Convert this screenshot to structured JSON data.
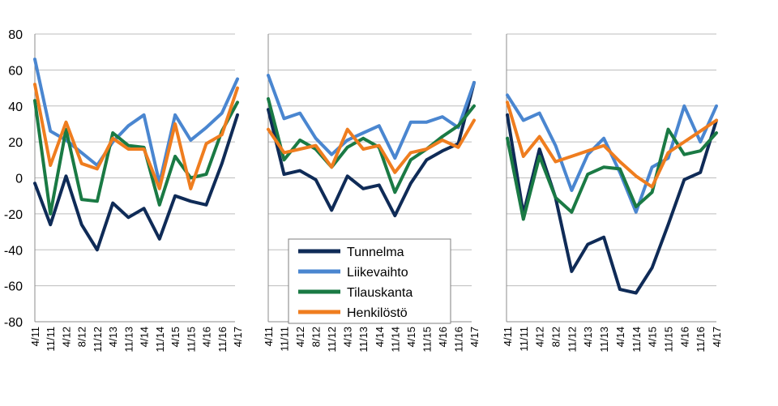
{
  "chart_data": {
    "type": "line",
    "ylim": [
      -80,
      80
    ],
    "yticks": [
      "80",
      "60",
      "40",
      "20",
      "0",
      "-20",
      "-40",
      "-60",
      "-80"
    ],
    "grid": true,
    "legend_placement": "bottom-center of middle panel",
    "colors": {
      "Tunnelma": "#0f2b57",
      "Liikevaihto": "#4a86d0",
      "Tilauskanta": "#1a7a44",
      "Henkilöstö": "#ef7d1f"
    },
    "legend": [
      "Tunnelma",
      "Liikevaihto",
      "Tilauskanta",
      "Henkilöstö"
    ],
    "panels": [
      {
        "x": [
          "4/11",
          "11/11",
          "4/12",
          "8/12",
          "11/12",
          "4/13",
          "11/13",
          "4/14",
          "11/14",
          "4/15",
          "11/15",
          "4/16",
          "11/16",
          "4/17"
        ],
        "series": [
          {
            "name": "Tunnelma",
            "values": [
              -3,
              -26,
              1,
              -26,
              -40,
              -14,
              -22,
              -17,
              -34,
              -10,
              -13,
              -15,
              8,
              35
            ]
          },
          {
            "name": "Liikevaihto",
            "values": [
              66,
              26,
              21,
              14,
              7,
              20,
              29,
              35,
              -3,
              35,
              21,
              28,
              36,
              55
            ]
          },
          {
            "name": "Tilauskanta",
            "values": [
              43,
              -20,
              27,
              -12,
              -13,
              25,
              18,
              17,
              -15,
              12,
              0,
              2,
              26,
              42
            ]
          },
          {
            "name": "Henkilöstö",
            "values": [
              52,
              7,
              31,
              8,
              5,
              22,
              16,
              16,
              -6,
              30,
              -6,
              19,
              24,
              50
            ]
          }
        ]
      },
      {
        "x": [
          "4/11",
          "11/11",
          "4/12",
          "8/12",
          "11/12",
          "4/13",
          "11/13",
          "4/14",
          "11/14",
          "4/15",
          "11/15",
          "4/16",
          "11/16",
          "4/17"
        ],
        "series": [
          {
            "name": "Tunnelma",
            "values": [
              38,
              2,
              4,
              -1,
              -18,
              1,
              -6,
              -4,
              -21,
              -3,
              10,
              15,
              19,
              53
            ]
          },
          {
            "name": "Liikevaihto",
            "values": [
              57,
              33,
              36,
              22,
              13,
              21,
              25,
              29,
              11,
              31,
              31,
              34,
              28,
              53
            ]
          },
          {
            "name": "Tilauskanta",
            "values": [
              44,
              10,
              21,
              16,
              6,
              17,
              22,
              17,
              -8,
              10,
              16,
              23,
              29,
              40
            ]
          },
          {
            "name": "Henkilöstö",
            "values": [
              27,
              14,
              16,
              18,
              6,
              27,
              16,
              18,
              3,
              14,
              16,
              21,
              17,
              32
            ]
          }
        ]
      },
      {
        "x": [
          "4/11",
          "11/11",
          "4/12",
          "8/12",
          "11/12",
          "4/13",
          "11/13",
          "4/14",
          "11/14",
          "4/15",
          "11/15",
          "4/16",
          "11/16",
          "4/17"
        ],
        "series": [
          {
            "name": "Tunnelma",
            "values": [
              35,
              -20,
              16,
              -11,
              -52,
              -37,
              -33,
              -62,
              -64,
              -50,
              -26,
              -1,
              3,
              32
            ]
          },
          {
            "name": "Liikevaihto",
            "values": [
              46,
              32,
              36,
              18,
              -7,
              13,
              22,
              3,
              -19,
              6,
              11,
              40,
              20,
              40
            ]
          },
          {
            "name": "Tilauskanta",
            "values": [
              22,
              -23,
              12,
              -11,
              -19,
              2,
              6,
              5,
              -16,
              -8,
              27,
              13,
              15,
              25
            ]
          },
          {
            "name": "Henkilöstö",
            "values": [
              42,
              12,
              23,
              9,
              12,
              15,
              18,
              9,
              1,
              -5,
              14,
              20,
              26,
              32
            ]
          }
        ]
      }
    ]
  }
}
